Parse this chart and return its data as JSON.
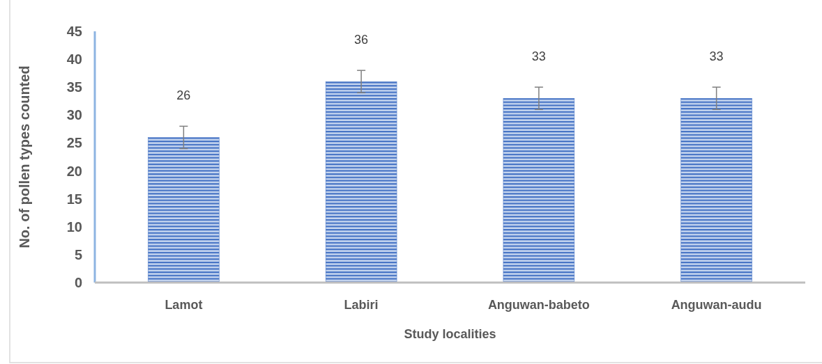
{
  "chart_data": {
    "type": "bar",
    "xlabel": "Study localities",
    "ylabel": "No. of pollen types counted",
    "categories": [
      "Lamot",
      "Labiri",
      "Anguwan-babeto",
      "Anguwan-audu"
    ],
    "values": [
      26,
      36,
      33,
      33
    ],
    "errors": [
      2,
      2,
      2,
      2
    ],
    "color": "#4472c4",
    "ylim": [
      0,
      45
    ],
    "yticks": [
      0,
      5,
      10,
      15,
      20,
      25,
      30,
      35,
      40,
      45
    ],
    "data_labels": true,
    "grid": false
  }
}
